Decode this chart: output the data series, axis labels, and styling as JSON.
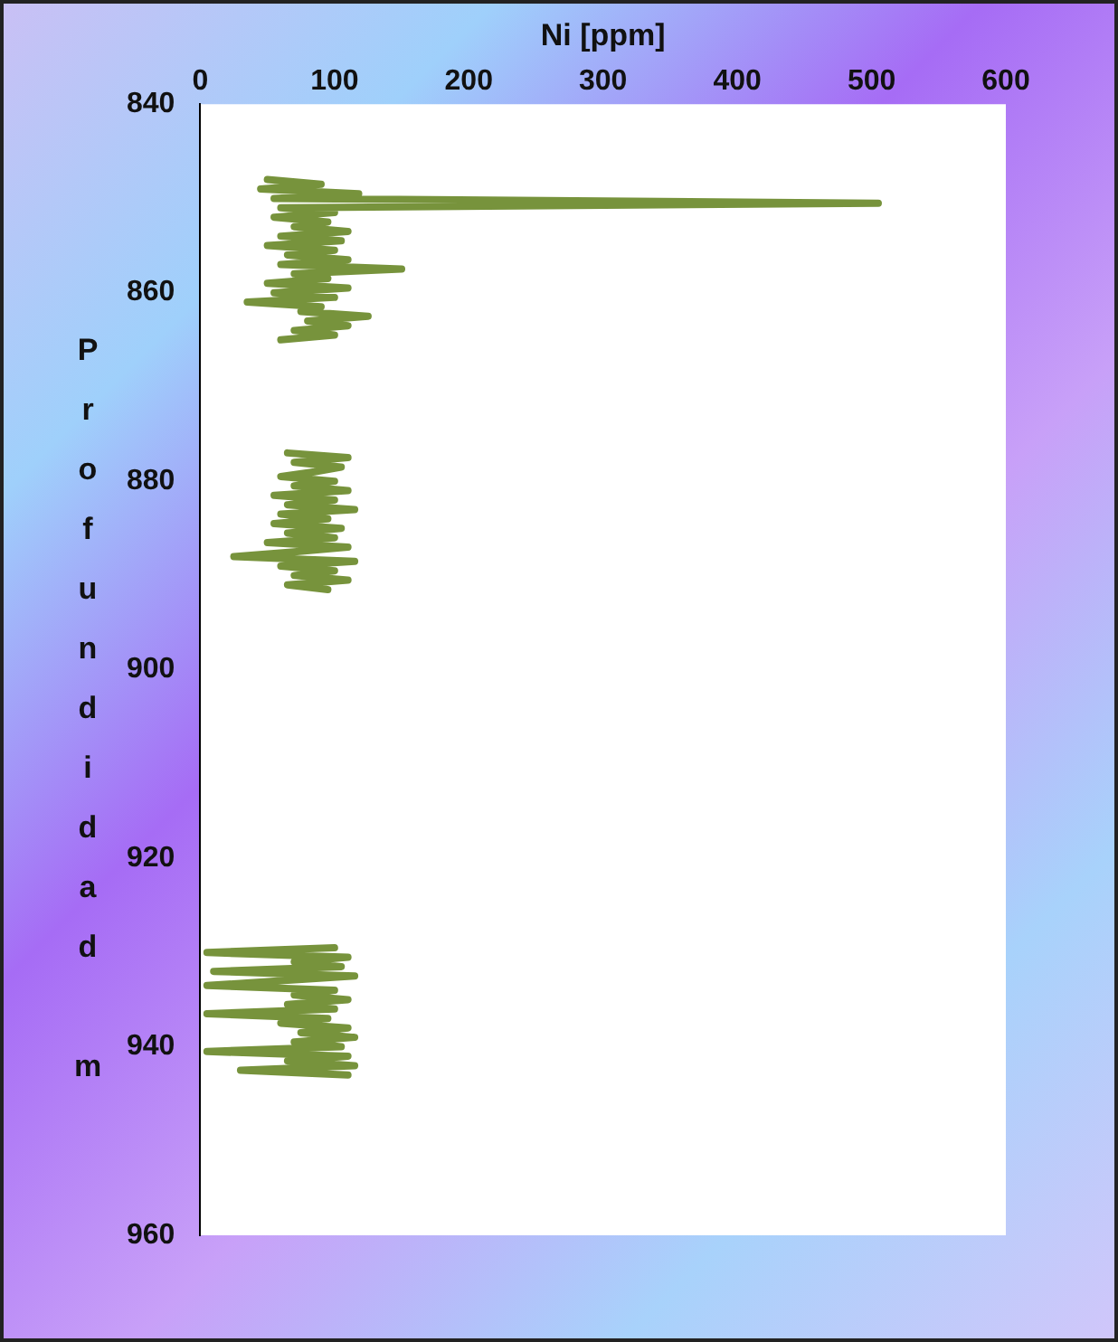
{
  "chart_data": {
    "type": "line",
    "xlabel": "Ni [ppm]",
    "ylabel": "Profundidad m",
    "xlim": [
      0,
      600
    ],
    "xticks": [
      0,
      100,
      200,
      300,
      400,
      500,
      600
    ],
    "ylim": [
      960,
      840
    ],
    "yticks": [
      840,
      860,
      880,
      900,
      920,
      940,
      960
    ],
    "marker": "none",
    "line_style": "solid",
    "series": [
      {
        "color": "#77933c",
        "x": [
          50,
          90,
          45,
          118,
          55,
          505,
          60,
          100,
          55,
          95,
          70,
          110,
          60,
          105,
          50,
          100,
          65,
          110,
          60,
          150,
          70,
          95,
          50,
          110,
          55,
          100,
          35,
          90,
          75,
          125,
          80,
          110,
          70,
          100,
          60
        ],
        "values": [
          848,
          848.5,
          849,
          849.5,
          850,
          850.5,
          851,
          851.5,
          852,
          852.5,
          853,
          853.5,
          854,
          854.5,
          855,
          855.5,
          856,
          856.5,
          857,
          857.5,
          858,
          858.5,
          859,
          859.5,
          860,
          860.5,
          861,
          861.5,
          862,
          862.5,
          863,
          863.5,
          864,
          864.5,
          865
        ]
      },
      {
        "color": "#77933c",
        "x": [
          65,
          110,
          70,
          105,
          85,
          60,
          100,
          70,
          110,
          55,
          100,
          65,
          115,
          60,
          95,
          55,
          105,
          65,
          100,
          50,
          110,
          70,
          25,
          115,
          60,
          100,
          70,
          110,
          65,
          95
        ],
        "values": [
          877,
          877.5,
          878,
          878.5,
          879,
          879.5,
          880,
          880.5,
          881,
          881.5,
          882,
          882.5,
          883,
          883.5,
          884,
          884.5,
          885,
          885.5,
          886,
          886.5,
          887,
          887.5,
          888,
          888.5,
          889,
          889.5,
          890,
          890.5,
          891,
          891.5
        ]
      },
      {
        "color": "#77933c",
        "x": [
          100,
          5,
          110,
          70,
          105,
          10,
          115,
          60,
          5,
          100,
          70,
          110,
          65,
          100,
          5,
          95,
          60,
          110,
          75,
          115,
          70,
          105,
          5,
          110,
          65,
          115,
          30,
          110
        ],
        "values": [
          929.5,
          930,
          930.5,
          931,
          931.5,
          932,
          932.5,
          933,
          933.5,
          934,
          934.5,
          935,
          935.5,
          936,
          936.5,
          937,
          937.5,
          938,
          938.5,
          939,
          939.5,
          940,
          940.5,
          941,
          941.5,
          942,
          942.5,
          943
        ]
      }
    ]
  }
}
